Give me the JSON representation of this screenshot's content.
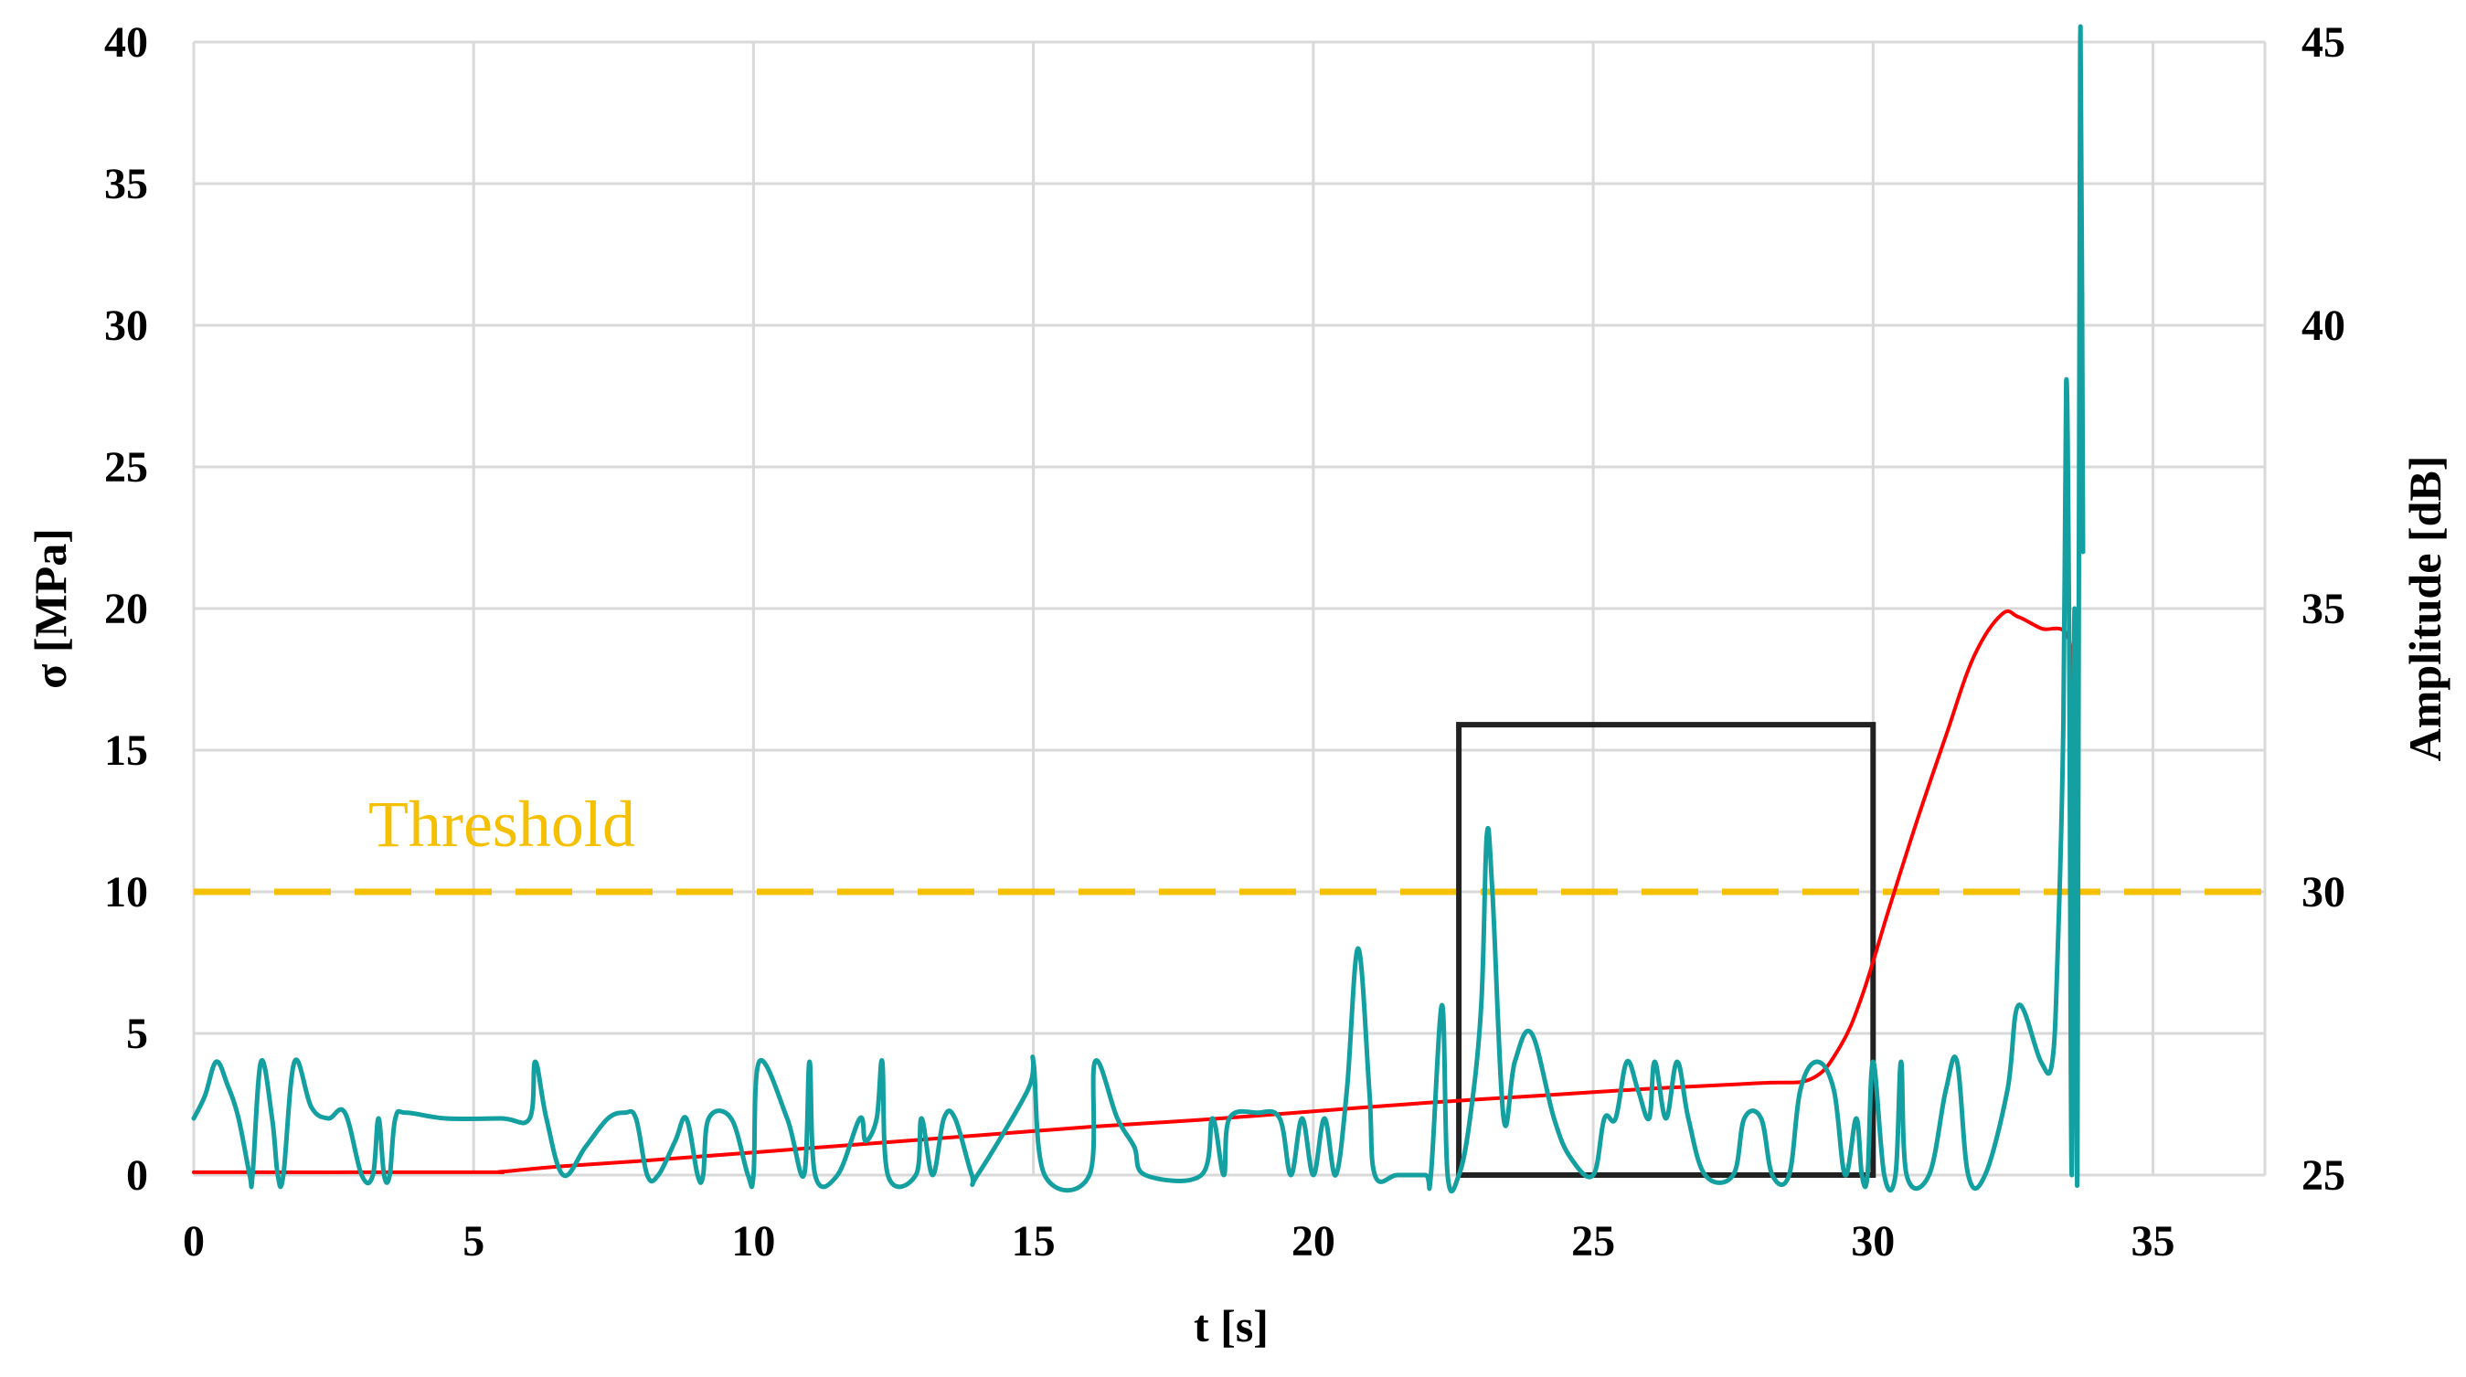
{
  "chart_data": {
    "type": "line",
    "title": "",
    "xlabel": "t [s]",
    "ylabel": "σ [MPa]",
    "y2label": "Amplitude [dB]",
    "xlim": [
      0,
      37
    ],
    "ylim": [
      0,
      40
    ],
    "y2lim": [
      25,
      45
    ],
    "x_ticks": [
      0,
      5,
      10,
      15,
      20,
      25,
      30,
      35
    ],
    "y_ticks": [
      0,
      5,
      10,
      15,
      20,
      25,
      30,
      35,
      40
    ],
    "y2_ticks": [
      25,
      30,
      35,
      40,
      45
    ],
    "grid": true,
    "colors": {
      "stress": "#ff0000",
      "amplitude": "#14a0a0",
      "threshold": "#f5c000",
      "box": "#222222",
      "grid": "#d9d9d9"
    },
    "threshold": {
      "label": "Threshold",
      "value": 30,
      "axis": "y2"
    },
    "highlight_box": {
      "x": [
        22.6,
        30
      ],
      "y": [
        0,
        15.9
      ]
    },
    "series": [
      {
        "axis": "y",
        "points": [
          [
            0,
            0.1
          ],
          [
            5,
            0.1
          ],
          [
            5.5,
            0.12
          ],
          [
            6.5,
            0.3
          ],
          [
            8,
            0.5
          ],
          [
            10,
            0.8
          ],
          [
            12,
            1.1
          ],
          [
            14,
            1.4
          ],
          [
            16,
            1.7
          ],
          [
            18,
            1.95
          ],
          [
            20,
            2.25
          ],
          [
            22,
            2.55
          ],
          [
            24,
            2.8
          ],
          [
            26,
            3.05
          ],
          [
            28,
            3.25
          ],
          [
            28.9,
            3.4
          ],
          [
            29.4,
            4.5
          ],
          [
            29.8,
            6.3
          ],
          [
            30.3,
            9.5
          ],
          [
            30.8,
            12.6
          ],
          [
            31.3,
            15.5
          ],
          [
            31.8,
            18.3
          ],
          [
            32.3,
            19.8
          ],
          [
            32.6,
            19.7
          ],
          [
            33,
            19.3
          ],
          [
            33.5,
            18.9
          ],
          [
            33.6,
            15.5
          ]
        ]
      },
      {
        "axis": "y2",
        "points": [
          [
            0,
            26
          ],
          [
            0.2,
            26.4
          ],
          [
            0.4,
            27
          ],
          [
            0.6,
            26.6
          ],
          [
            0.8,
            26
          ],
          [
            1,
            25
          ],
          [
            1.05,
            25
          ],
          [
            1.2,
            27
          ],
          [
            1.4,
            26
          ],
          [
            1.5,
            25
          ],
          [
            1.6,
            25
          ],
          [
            1.8,
            27
          ],
          [
            2.1,
            26.2
          ],
          [
            2.4,
            26
          ],
          [
            2.7,
            26.1
          ],
          [
            3,
            25
          ],
          [
            3.2,
            25
          ],
          [
            3.3,
            26
          ],
          [
            3.4,
            25
          ],
          [
            3.5,
            25
          ],
          [
            3.6,
            26
          ],
          [
            3.8,
            26.1
          ],
          [
            4.5,
            26
          ],
          [
            5.5,
            26
          ],
          [
            6,
            26
          ],
          [
            6.1,
            27
          ],
          [
            6.3,
            26
          ],
          [
            6.6,
            25
          ],
          [
            7,
            25.5
          ],
          [
            7.4,
            26
          ],
          [
            7.7,
            26.1
          ],
          [
            7.9,
            26
          ],
          [
            8.1,
            25
          ],
          [
            8.3,
            25
          ],
          [
            8.6,
            25.6
          ],
          [
            8.8,
            26
          ],
          [
            9,
            25
          ],
          [
            9.1,
            25
          ],
          [
            9.2,
            26
          ],
          [
            9.6,
            26
          ],
          [
            9.9,
            25
          ],
          [
            10,
            25
          ],
          [
            10.1,
            27
          ],
          [
            10.6,
            26
          ],
          [
            10.9,
            25
          ],
          [
            11,
            27
          ],
          [
            11.1,
            25
          ],
          [
            11.5,
            25
          ],
          [
            11.9,
            26
          ],
          [
            12,
            25.6
          ],
          [
            12.2,
            26
          ],
          [
            12.3,
            27
          ],
          [
            12.4,
            25
          ],
          [
            12.9,
            25
          ],
          [
            13,
            26
          ],
          [
            13.2,
            25
          ],
          [
            13.4,
            26
          ],
          [
            13.6,
            26
          ],
          [
            13.9,
            25
          ],
          [
            14,
            25
          ],
          [
            14.9,
            26.5
          ],
          [
            15,
            27
          ],
          [
            15.2,
            25
          ],
          [
            16,
            25
          ],
          [
            16.1,
            27
          ],
          [
            16.5,
            26
          ],
          [
            16.8,
            25.5
          ],
          [
            17,
            25
          ],
          [
            18,
            25
          ],
          [
            18.2,
            26
          ],
          [
            18.4,
            25
          ],
          [
            18.5,
            26
          ],
          [
            19,
            26.1
          ],
          [
            19.4,
            26
          ],
          [
            19.6,
            25
          ],
          [
            19.8,
            26
          ],
          [
            20,
            25
          ],
          [
            20.2,
            26
          ],
          [
            20.4,
            25
          ],
          [
            20.6,
            26.5
          ],
          [
            20.8,
            29
          ],
          [
            21,
            26.5
          ],
          [
            21.1,
            25
          ],
          [
            21.5,
            25
          ],
          [
            22,
            25
          ],
          [
            22.1,
            25
          ],
          [
            22.3,
            28
          ],
          [
            22.4,
            25
          ],
          [
            22.6,
            25
          ],
          [
            22.8,
            26
          ],
          [
            23,
            28
          ],
          [
            23.1,
            31
          ],
          [
            23.2,
            30
          ],
          [
            23.4,
            26
          ],
          [
            23.6,
            27
          ],
          [
            23.9,
            27.5
          ],
          [
            24.3,
            26
          ],
          [
            24.6,
            25.3
          ],
          [
            25,
            25
          ],
          [
            25.2,
            26
          ],
          [
            25.4,
            26
          ],
          [
            25.6,
            27
          ],
          [
            25.8,
            26.5
          ],
          [
            26,
            26
          ],
          [
            26.1,
            27
          ],
          [
            26.3,
            26
          ],
          [
            26.5,
            27
          ],
          [
            26.7,
            26
          ],
          [
            27,
            25
          ],
          [
            27.5,
            25
          ],
          [
            27.7,
            26
          ],
          [
            28,
            26
          ],
          [
            28.2,
            25
          ],
          [
            28.5,
            25
          ],
          [
            28.7,
            26.5
          ],
          [
            29,
            27
          ],
          [
            29.3,
            26.5
          ],
          [
            29.5,
            25
          ],
          [
            29.7,
            26
          ],
          [
            29.8,
            25
          ],
          [
            29.9,
            25
          ],
          [
            30,
            27
          ],
          [
            30.2,
            25
          ],
          [
            30.4,
            25
          ],
          [
            30.5,
            27
          ],
          [
            30.6,
            25
          ],
          [
            31,
            25
          ],
          [
            31.3,
            26.5
          ],
          [
            31.5,
            27
          ],
          [
            31.7,
            25
          ],
          [
            32,
            25
          ],
          [
            32.4,
            26.5
          ],
          [
            32.6,
            28
          ],
          [
            33,
            27
          ],
          [
            33.2,
            27
          ],
          [
            33.3,
            29
          ],
          [
            33.4,
            33
          ],
          [
            33.45,
            39
          ],
          [
            33.5,
            35
          ],
          [
            33.55,
            25
          ],
          [
            33.6,
            35
          ],
          [
            33.65,
            25
          ],
          [
            33.7,
            45
          ],
          [
            33.75,
            36
          ]
        ]
      }
    ]
  }
}
